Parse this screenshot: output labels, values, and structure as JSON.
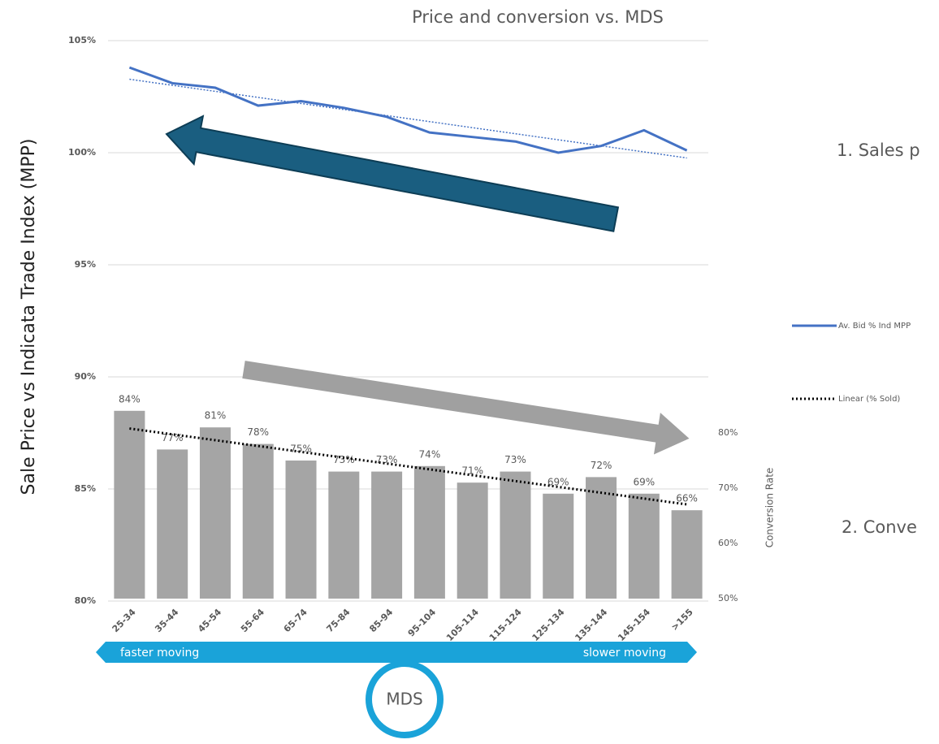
{
  "chart_data": {
    "type": "combo",
    "title": "Price and conversion vs. MDS",
    "y_label": "Sale Price vs Indicata Trade Index (MPP)",
    "y2_label": "Conversion Rate",
    "categories": [
      "25-34",
      "35-44",
      "45-54",
      "55-64",
      "65-74",
      "75-84",
      "85-94",
      "95-104",
      "105-114",
      "115-124",
      "125-134",
      "135-144",
      "145-154",
      ">155"
    ],
    "series": [
      {
        "name": "Av. Bid % Ind MPP",
        "type": "line",
        "color": "#4472c4",
        "trendline": true,
        "values": [
          103.8,
          103.1,
          102.9,
          102.1,
          102.3,
          102.0,
          101.6,
          100.9,
          100.7,
          100.5,
          100.0,
          100.3,
          101.0,
          100.1
        ]
      },
      {
        "type": "bar",
        "axis": "y2",
        "color": "#a5a5a5",
        "trendline": true,
        "trendline_name": "Linear (% Sold)",
        "trendline_color": "#000000",
        "values": [
          84,
          77,
          81,
          78,
          75,
          73,
          73,
          74,
          71,
          73,
          69,
          72,
          69,
          66
        ],
        "value_labels": [
          "84%",
          "77%",
          "81%",
          "78%",
          "75%",
          "73%",
          "73%",
          "74%",
          "71%",
          "73%",
          "69%",
          "72%",
          "69%",
          "66%"
        ]
      }
    ],
    "ylim": [
      80,
      105
    ],
    "yticks": [
      {
        "value": 80,
        "label": "80%"
      },
      {
        "value": 85,
        "label": "85%"
      },
      {
        "value": 90,
        "label": "90%"
      },
      {
        "value": 95,
        "label": "95%"
      },
      {
        "value": 100,
        "label": "100%"
      },
      {
        "value": 105,
        "label": "105%"
      }
    ],
    "y2lim": [
      50,
      80
    ],
    "y2ticks": [
      {
        "value": 50,
        "label": "50%"
      },
      {
        "value": 60,
        "label": "60%"
      },
      {
        "value": 70,
        "label": "70%"
      },
      {
        "value": 80,
        "label": "80%"
      }
    ],
    "grid": true,
    "legend": "right",
    "annotations": {
      "sales": "1. Sales p",
      "conversion": "2. Conve",
      "faster": "faster moving",
      "mds": "MDS",
      "slower": "slower moving"
    }
  }
}
